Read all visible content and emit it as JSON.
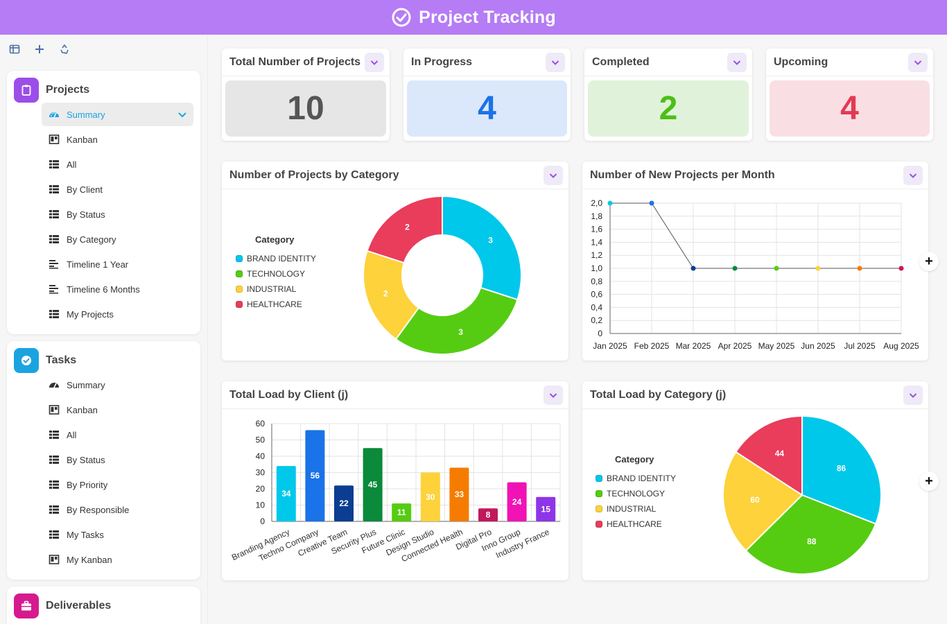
{
  "header": {
    "title": "Project Tracking"
  },
  "sidebar": {
    "groups": [
      {
        "title": "Projects",
        "color": "#9c4ee8",
        "items": [
          {
            "label": "Summary",
            "icon": "dashboard-icon",
            "active": true
          },
          {
            "label": "Kanban",
            "icon": "kanban-icon"
          },
          {
            "label": "All",
            "icon": "table-icon"
          },
          {
            "label": "By Client",
            "icon": "table-icon"
          },
          {
            "label": "By Status",
            "icon": "table-icon"
          },
          {
            "label": "By Category",
            "icon": "table-icon"
          },
          {
            "label": "Timeline 1 Year",
            "icon": "timeline-icon"
          },
          {
            "label": "Timeline 6 Months",
            "icon": "timeline-icon"
          },
          {
            "label": "My Projects",
            "icon": "table-icon"
          }
        ]
      },
      {
        "title": "Tasks",
        "color": "#1ba3e0",
        "items": [
          {
            "label": "Summary",
            "icon": "dashboard-icon"
          },
          {
            "label": "Kanban",
            "icon": "kanban-icon"
          },
          {
            "label": "All",
            "icon": "table-icon"
          },
          {
            "label": "By Status",
            "icon": "table-icon"
          },
          {
            "label": "By Priority",
            "icon": "table-icon"
          },
          {
            "label": "By Responsible",
            "icon": "table-icon"
          },
          {
            "label": "My Tasks",
            "icon": "table-icon"
          },
          {
            "label": "My Kanban",
            "icon": "kanban-icon"
          }
        ]
      },
      {
        "title": "Deliverables",
        "color": "#d6198f",
        "items": []
      }
    ]
  },
  "kpis": [
    {
      "title": "Total Number of Projects",
      "value": "10",
      "bg": "#e6e6e6",
      "fg": "#555555"
    },
    {
      "title": "In Progress",
      "value": "4",
      "bg": "#dbe8fb",
      "fg": "#1a73e8"
    },
    {
      "title": "Completed",
      "value": "2",
      "bg": "#e0f3da",
      "fg": "#4cbf15"
    },
    {
      "title": "Upcoming",
      "value": "4",
      "bg": "#f9dfe3",
      "fg": "#e23a55"
    }
  ],
  "charts": {
    "donut_title": "Number of Projects by Category",
    "line_title": "Number of New Projects per Month",
    "bar_title": "Total Load by Client (j)",
    "pie_title": "Total Load by Category (j)",
    "legend_title": "Category"
  },
  "chart_data": [
    {
      "type": "pie",
      "variant": "donut",
      "title": "Number of Projects by Category",
      "legend_title": "Category",
      "legend_position": "left",
      "categories": [
        "BRAND IDENTITY",
        "TECHNOLOGY",
        "INDUSTRIAL",
        "HEALTHCARE"
      ],
      "values": [
        3,
        3,
        2,
        2
      ],
      "colors": [
        "#00c8ea",
        "#55cc11",
        "#fdd23a",
        "#ea3c5b"
      ]
    },
    {
      "type": "line",
      "title": "Number of New Projects per Month",
      "x": [
        "Jan 2025",
        "Feb 2025",
        "Mar 2025",
        "Apr 2025",
        "May 2025",
        "Jun 2025",
        "Jul 2025",
        "Aug 2025"
      ],
      "values": [
        2,
        2,
        1,
        1,
        1,
        1,
        1,
        1
      ],
      "point_colors": [
        "#00c8ea",
        "#1a73e8",
        "#0b3d91",
        "#0a8a3a",
        "#55cc11",
        "#fdd23a",
        "#f57c00",
        "#d1145a"
      ],
      "ylim": [
        0,
        2
      ],
      "yticks": [
        "0",
        "0,2",
        "0,4",
        "0,6",
        "0,8",
        "1,0",
        "1,2",
        "1,4",
        "1,6",
        "1,8",
        "2,0"
      ],
      "grid": true
    },
    {
      "type": "bar",
      "title": "Total Load by Client (j)",
      "categories": [
        "Branding Agency",
        "Techno Company",
        "Creative Team",
        "Security Plus",
        "Future Clinic",
        "Design Studio",
        "Connected Health",
        "Digital Pro",
        "Inno Group",
        "Industry France"
      ],
      "values": [
        34,
        56,
        22,
        45,
        11,
        30,
        33,
        8,
        24,
        15
      ],
      "colors": [
        "#00c8ea",
        "#1a73e8",
        "#0b3d91",
        "#0a8a3a",
        "#55cc11",
        "#fdd23a",
        "#f57c00",
        "#c2185b",
        "#f012b5",
        "#8e35e8"
      ],
      "ylim": [
        0,
        60
      ],
      "yticks": [
        0,
        10,
        20,
        30,
        40,
        50,
        60
      ],
      "grid": true
    },
    {
      "type": "pie",
      "title": "Total Load by Category (j)",
      "legend_title": "Category",
      "legend_position": "left",
      "categories": [
        "BRAND IDENTITY",
        "TECHNOLOGY",
        "INDUSTRIAL",
        "HEALTHCARE"
      ],
      "values": [
        86,
        88,
        60,
        44
      ],
      "colors": [
        "#00c8ea",
        "#55cc11",
        "#fdd23a",
        "#ea3c5b"
      ]
    }
  ]
}
